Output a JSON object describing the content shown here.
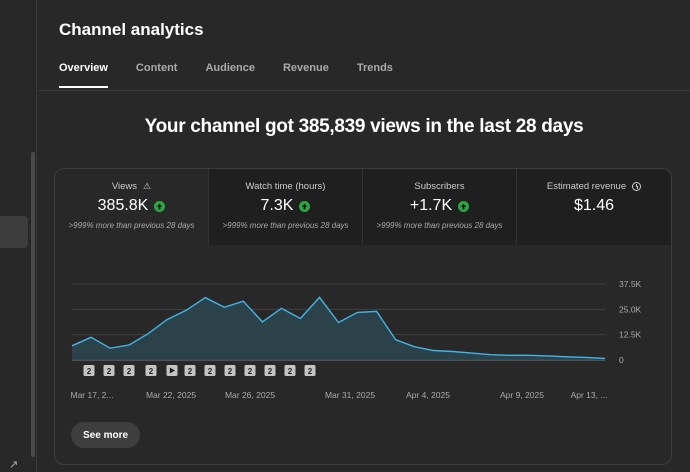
{
  "page": {
    "title": "Channel analytics",
    "tabs": [
      {
        "label": "Overview",
        "active": true
      },
      {
        "label": "Content",
        "active": false
      },
      {
        "label": "Audience",
        "active": false
      },
      {
        "label": "Revenue",
        "active": false
      },
      {
        "label": "Trends",
        "active": false
      }
    ],
    "headline": "Your channel got 385,839 views in the last 28 days"
  },
  "metrics": [
    {
      "label": "Views",
      "value": "385.8K",
      "sub": ">999% more than previous 28 days",
      "icon": "warning-icon",
      "up": true
    },
    {
      "label": "Watch time (hours)",
      "value": "7.3K",
      "sub": ">999% more than previous 28 days",
      "up": true
    },
    {
      "label": "Subscribers",
      "value": "+1.7K",
      "sub": ">999% more than previous 28 days",
      "up": true
    },
    {
      "label": "Estimated revenue",
      "value": "$1.46",
      "icon": "clock-icon",
      "up": false
    }
  ],
  "colors": {
    "line": "#41b4e6",
    "fill": "#2d4650",
    "up_badge": "#2ba640"
  },
  "see_more": "See more",
  "chart_data": {
    "type": "line",
    "x_ticks": [
      "Mar 17, 2...",
      "Mar 22, 2025",
      "Mar 26, 2025",
      "Mar 31, 2025",
      "Apr 4, 2025",
      "Apr 9, 2025",
      "Apr 13, ..."
    ],
    "y_ticks": [
      "37.5K",
      "25.0K",
      "12.5K",
      "0"
    ],
    "ylim": [
      0,
      37500
    ],
    "series": [
      {
        "values": [
          7000,
          11200,
          5800,
          7400,
          13000,
          20000,
          24500,
          30800,
          26000,
          29000,
          18800,
          25500,
          20500,
          30900,
          18500,
          23500,
          24000,
          10000,
          6500,
          4700,
          4200,
          3400,
          2600,
          2300,
          2300,
          2000,
          1600,
          1300,
          800
        ]
      }
    ],
    "markers": [
      "2",
      "2",
      "2",
      "2",
      "play",
      "2",
      "2",
      "2",
      "2",
      "2",
      "2",
      "2"
    ]
  }
}
